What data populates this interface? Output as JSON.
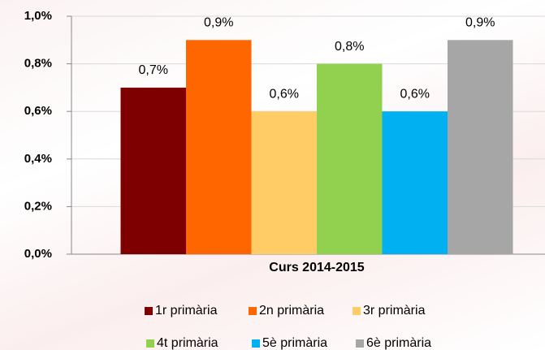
{
  "chart_data": {
    "type": "bar",
    "categories": [
      "Curs 2014-2015"
    ],
    "series": [
      {
        "name": "1r primària",
        "color": "#7f0000",
        "values": [
          0.7
        ],
        "value_labels": [
          "0,7%"
        ]
      },
      {
        "name": "2n primària",
        "color": "#ff6600",
        "values": [
          0.9
        ],
        "value_labels": [
          "0,9%"
        ]
      },
      {
        "name": "3r primària",
        "color": "#ffcc66",
        "values": [
          0.6
        ],
        "value_labels": [
          "0,6%"
        ]
      },
      {
        "name": "4t primària",
        "color": "#92d050",
        "values": [
          0.8
        ],
        "value_labels": [
          "0,8%"
        ]
      },
      {
        "name": "5è primària",
        "color": "#00b0f0",
        "values": [
          0.6
        ],
        "value_labels": [
          "0,6%"
        ]
      },
      {
        "name": "6è primària",
        "color": "#a6a6a6",
        "values": [
          0.9
        ],
        "value_labels": [
          "0,9%"
        ]
      }
    ],
    "ylim": [
      0,
      1.0
    ],
    "yticks": [
      {
        "value": 0,
        "label": "0,0%"
      },
      {
        "value": 0.2,
        "label": "0,2%"
      },
      {
        "value": 0.4,
        "label": "0,4%"
      },
      {
        "value": 0.6,
        "label": "0,6%"
      },
      {
        "value": 0.8,
        "label": "0,8%"
      },
      {
        "value": 1.0,
        "label": "1,0%"
      }
    ],
    "grid": true,
    "legend": "bottom"
  }
}
